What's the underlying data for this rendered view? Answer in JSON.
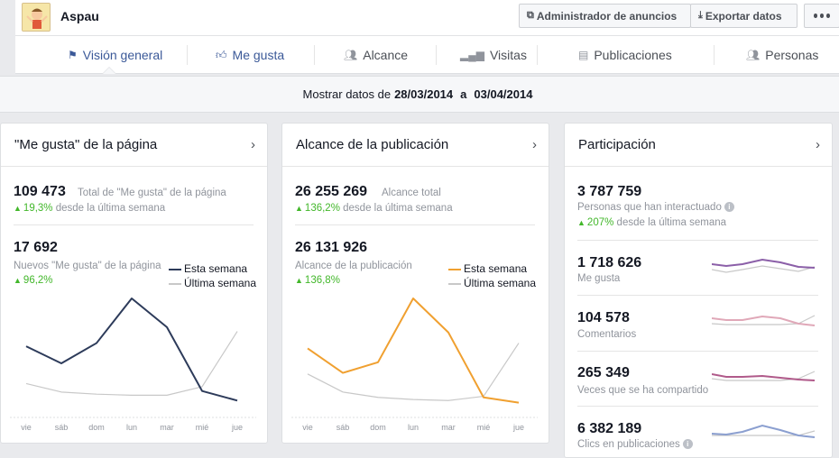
{
  "header": {
    "page_name": "Aspau",
    "ads_manager_label": "Administrador de anuncios",
    "export_label": "Exportar datos"
  },
  "tabs": [
    {
      "label": "Visión general",
      "icon": "flag-icon",
      "active": true
    },
    {
      "label": "Me gusta",
      "icon": "thumbs-up-icon"
    },
    {
      "label": "Alcance",
      "icon": "people-icon"
    },
    {
      "label": "Visitas",
      "icon": "bar-chart-icon"
    },
    {
      "label": "Publicaciones",
      "icon": "posts-icon"
    },
    {
      "label": "Personas",
      "icon": "people-icon"
    }
  ],
  "date_range": {
    "prefix": "Mostrar datos de",
    "start": "28/03/2014",
    "connector": "a",
    "end": "03/04/2014"
  },
  "likes_card": {
    "title": "\"Me gusta\" de la página",
    "total_value": "109 473",
    "total_label": "Total de \"Me gusta\" de la página",
    "total_change": "19,3%",
    "total_change_label": "desde la última semana",
    "new_value": "17 692",
    "new_label": "Nuevos \"Me gusta\" de la página",
    "new_change": "96,2%",
    "legend_this": "Esta semana",
    "legend_last": "Última semana"
  },
  "reach_card": {
    "title": "Alcance de la publicación",
    "total_value": "26 255 269",
    "total_label": "Alcance total",
    "total_change": "136,2%",
    "total_change_label": "desde la última semana",
    "post_value": "26 131 926",
    "post_label": "Alcance de la publicación",
    "post_change": "136,8%",
    "legend_this": "Esta semana",
    "legend_last": "Última semana"
  },
  "engagement_card": {
    "title": "Participación",
    "total_value": "3 787 759",
    "total_label": "Personas que han interactuado",
    "total_change": "207%",
    "total_change_label": "desde la última semana",
    "rows": [
      {
        "value": "1 718 626",
        "label": "Me gusta",
        "color": "#8b5fa8"
      },
      {
        "value": "104 578",
        "label": "Comentarios",
        "color": "#e0a8b8"
      },
      {
        "value": "265 349",
        "label": "Veces que se ha compartido",
        "color": "#b05a8a"
      },
      {
        "value": "6 382 189",
        "label": "Clics en publicaciones",
        "color": "#8b9fd0"
      }
    ]
  },
  "colors": {
    "likes_this_week": "#2d3b5a",
    "reach_this_week": "#f0a030",
    "last_week": "#c8c8c8",
    "accent": "#3b5998",
    "positive": "#42b72a"
  },
  "chart_data": [
    {
      "type": "line",
      "categories": [
        "vie",
        "sáb",
        "dom",
        "lun",
        "mar",
        "mié",
        "jue"
      ],
      "series": [
        {
          "name": "Esta semana",
          "values": [
            0.55,
            0.39,
            0.58,
            1.0,
            0.73,
            0.13,
            0.04
          ]
        },
        {
          "name": "Última semana",
          "values": [
            0.2,
            0.12,
            0.1,
            0.09,
            0.09,
            0.17,
            0.69
          ]
        }
      ]
    },
    {
      "type": "line",
      "categories": [
        "vie",
        "sáb",
        "dom",
        "lun",
        "mar",
        "mié",
        "jue"
      ],
      "series": [
        {
          "name": "Esta semana",
          "values": [
            0.53,
            0.3,
            0.4,
            1.0,
            0.68,
            0.07,
            0.02
          ]
        },
        {
          "name": "Última semana",
          "values": [
            0.29,
            0.12,
            0.07,
            0.05,
            0.04,
            0.08,
            0.58
          ]
        }
      ]
    }
  ]
}
